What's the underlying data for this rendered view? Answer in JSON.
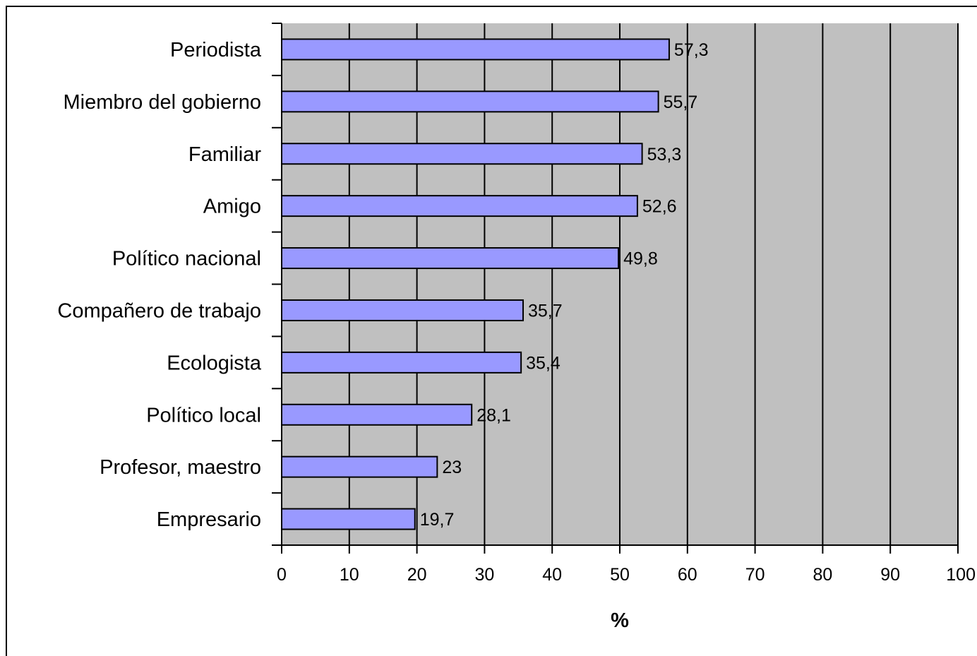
{
  "chart_data": {
    "type": "bar",
    "orientation": "horizontal",
    "categories": [
      "Periodista",
      "Miembro del gobierno",
      "Familiar",
      "Amigo ",
      "Político nacional",
      "Compañero de trabajo",
      "Ecologista",
      "Político local",
      "Profesor, maestro",
      "Empresario"
    ],
    "values": [
      57.3,
      55.7,
      53.3,
      52.6,
      49.8,
      35.7,
      35.4,
      28.1,
      23,
      19.7
    ],
    "data_labels": [
      "57,3",
      "55,7",
      "53,3",
      "52,6",
      "49,8",
      "35,7",
      "35,4",
      "28,1",
      "23",
      "19,7"
    ],
    "title": "",
    "xlabel": "%",
    "ylabel": "",
    "xlim": [
      0,
      100
    ],
    "x_ticks": [
      0,
      10,
      20,
      30,
      40,
      50,
      60,
      70,
      80,
      90,
      100
    ],
    "x_tick_labels": [
      "0",
      "10",
      "20",
      "30",
      "40",
      "50",
      "60",
      "70",
      "80",
      "90",
      "100"
    ],
    "grid": "vertical",
    "legend": "none",
    "colors": {
      "bar_fill": "#9999ff",
      "plot_background": "#c0c0c0",
      "gridline": "#000000",
      "bar_stroke": "#000000"
    }
  }
}
